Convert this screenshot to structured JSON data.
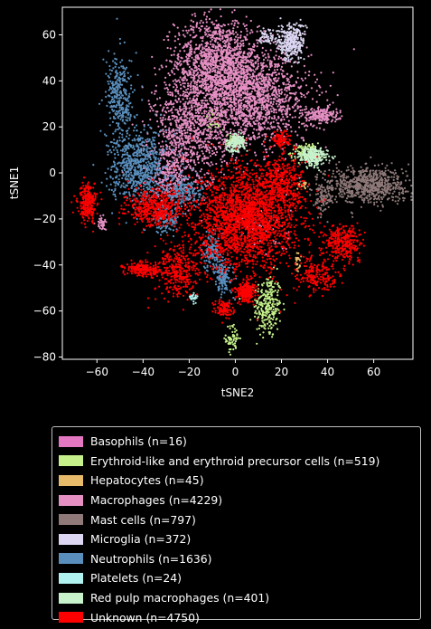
{
  "chart_data": {
    "type": "scatter",
    "title": "",
    "xlabel": "tSNE2",
    "ylabel": "tSNE1",
    "xlim": [
      -75,
      77
    ],
    "ylim": [
      -81,
      72
    ],
    "xticks": [
      -60,
      -40,
      -20,
      0,
      20,
      40,
      60
    ],
    "yticks": [
      -80,
      -60,
      -40,
      -20,
      0,
      20,
      40,
      60
    ],
    "grid": false,
    "legend_position": "below",
    "series": [
      {
        "name": "Basophils (n=16)",
        "color": "#e377c2",
        "clusters": [
          {
            "cx": -8,
            "cy": 20,
            "sx": 3,
            "sy": 4,
            "n": 16
          }
        ]
      },
      {
        "name": "Erythroid-like and erythroid precursor cells (n=519)",
        "color": "#c5f08a",
        "clusters": [
          {
            "cx": 14,
            "cy": -58,
            "sx": 3,
            "sy": 7,
            "n": 260
          },
          {
            "cx": -1,
            "cy": -72,
            "sx": 1.5,
            "sy": 3,
            "n": 60
          },
          {
            "cx": 30,
            "cy": 9,
            "sx": 3,
            "sy": 2,
            "n": 100
          },
          {
            "cx": -9,
            "cy": 23,
            "sx": 2,
            "sy": 2,
            "n": 40
          },
          {
            "cx": 0,
            "cy": 14,
            "sx": 2,
            "sy": 1.5,
            "n": 59
          }
        ]
      },
      {
        "name": "Hepatocytes (n=45)",
        "color": "#e8bb6a",
        "clusters": [
          {
            "cx": 27,
            "cy": -39,
            "sx": 0.5,
            "sy": 2,
            "n": 25
          },
          {
            "cx": 29,
            "cy": -5,
            "sx": 1,
            "sy": 1,
            "n": 20
          }
        ]
      },
      {
        "name": "Macrophages (n=4229)",
        "color": "#e58fc3",
        "clusters": [
          {
            "cx": -8,
            "cy": 48,
            "sx": 9,
            "sy": 10,
            "n": 1300
          },
          {
            "cx": 8,
            "cy": 32,
            "sx": 12,
            "sy": 10,
            "n": 1500
          },
          {
            "cx": -20,
            "cy": 18,
            "sx": 8,
            "sy": 12,
            "n": 900
          },
          {
            "cx": -28,
            "cy": 0,
            "sx": 4,
            "sy": 6,
            "n": 250
          },
          {
            "cx": 37,
            "cy": 25,
            "sx": 4,
            "sy": 2,
            "n": 180
          },
          {
            "cx": -58,
            "cy": -22,
            "sx": 1,
            "sy": 1.5,
            "n": 40
          },
          {
            "cx": 12,
            "cy": -25,
            "sx": 6,
            "sy": 6,
            "n": 59
          }
        ]
      },
      {
        "name": "Mast cells (n=797)",
        "color": "#8f7979",
        "clusters": [
          {
            "cx": 57,
            "cy": -5,
            "sx": 9,
            "sy": 4,
            "n": 700
          },
          {
            "cx": 38,
            "cy": -11,
            "sx": 2,
            "sy": 3,
            "n": 97
          }
        ]
      },
      {
        "name": "Microglia (n=372)",
        "color": "#dcd6f2",
        "clusters": [
          {
            "cx": 24,
            "cy": 57,
            "sx": 3,
            "sy": 4,
            "n": 320
          },
          {
            "cx": 14,
            "cy": 59,
            "sx": 2,
            "sy": 2,
            "n": 52
          }
        ]
      },
      {
        "name": "Neutrophils (n=1636)",
        "color": "#5a8fbd",
        "clusters": [
          {
            "cx": -50,
            "cy": 33,
            "sx": 3,
            "sy": 9,
            "n": 300
          },
          {
            "cx": -42,
            "cy": 3,
            "sx": 6,
            "sy": 8,
            "n": 700
          },
          {
            "cx": -22,
            "cy": -8,
            "sx": 4,
            "sy": 3,
            "n": 200
          },
          {
            "cx": -10,
            "cy": -34,
            "sx": 2,
            "sy": 4,
            "n": 150
          },
          {
            "cx": -5,
            "cy": -45,
            "sx": 2,
            "sy": 4,
            "n": 150
          },
          {
            "cx": -30,
            "cy": -20,
            "sx": 3,
            "sy": 3,
            "n": 136
          }
        ]
      },
      {
        "name": "Platelets (n=24)",
        "color": "#b0f2f0",
        "clusters": [
          {
            "cx": -18,
            "cy": -54,
            "sx": 1,
            "sy": 1,
            "n": 24
          }
        ]
      },
      {
        "name": "Red pulp macrophages (n=401)",
        "color": "#c7f2cc",
        "clusters": [
          {
            "cx": 34,
            "cy": 7,
            "sx": 3,
            "sy": 2,
            "n": 250
          },
          {
            "cx": 0,
            "cy": 13,
            "sx": 2,
            "sy": 2,
            "n": 151
          }
        ]
      },
      {
        "name": "Unknown (n=4750)",
        "color": "#ff0000",
        "clusters": [
          {
            "cx": 5,
            "cy": -20,
            "sx": 11,
            "sy": 11,
            "n": 2200
          },
          {
            "cx": -35,
            "cy": -15,
            "sx": 6,
            "sy": 4,
            "n": 450
          },
          {
            "cx": -64,
            "cy": -13,
            "sx": 2,
            "sy": 4,
            "n": 250
          },
          {
            "cx": -40,
            "cy": -42,
            "sx": 4,
            "sy": 1.5,
            "n": 200
          },
          {
            "cx": -25,
            "cy": -42,
            "sx": 5,
            "sy": 6,
            "n": 350
          },
          {
            "cx": 47,
            "cy": -30,
            "sx": 4,
            "sy": 4,
            "n": 300
          },
          {
            "cx": 20,
            "cy": -5,
            "sx": 5,
            "sy": 6,
            "n": 350
          },
          {
            "cx": 35,
            "cy": -45,
            "sx": 5,
            "sy": 4,
            "n": 200
          },
          {
            "cx": 20,
            "cy": 14,
            "sx": 2,
            "sy": 2,
            "n": 100
          },
          {
            "cx": -5,
            "cy": -59,
            "sx": 2,
            "sy": 2,
            "n": 100
          },
          {
            "cx": 5,
            "cy": -52,
            "sx": 2,
            "sy": 2,
            "n": 250
          }
        ]
      }
    ]
  }
}
